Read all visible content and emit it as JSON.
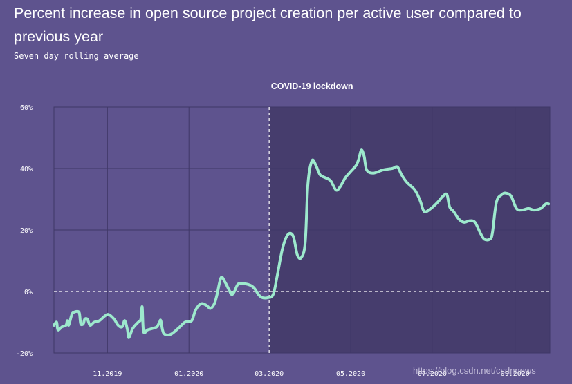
{
  "chart_data": {
    "type": "line",
    "title": "Percent increase in open source project creation per active user compared to previous year",
    "subtitle": "Seven day rolling average",
    "annotation": "COVID-19 lockdown",
    "ylim": [
      -20,
      60
    ],
    "y_ticks": [
      "60%",
      "40%",
      "20%",
      "0%",
      "-20%"
    ],
    "y_tick_values": [
      60,
      40,
      20,
      0,
      -20
    ],
    "x_range": [
      "2019-09-22",
      "2020-09-27"
    ],
    "x_ticks": [
      {
        "label": "11.2019",
        "date": "2019-11-01"
      },
      {
        "label": "01.2020",
        "date": "2020-01-01"
      },
      {
        "label": "03.2020",
        "date": "2020-03-01"
      },
      {
        "label": "05.2020",
        "date": "2020-05-01"
      },
      {
        "label": "07.2020",
        "date": "2020-07-01"
      },
      {
        "label": "09.2020",
        "date": "2020-09-01"
      }
    ],
    "lockdown_start": "2020-03-01",
    "series": [
      {
        "name": "Percent increase",
        "color": "#9de9cd",
        "points": [
          [
            "2019-09-22",
            -11
          ],
          [
            "2019-09-24",
            -10
          ],
          [
            "2019-09-25",
            -12.5
          ],
          [
            "2019-09-28",
            -11.5
          ],
          [
            "2019-10-01",
            -11
          ],
          [
            "2019-10-02",
            -9.5
          ],
          [
            "2019-10-03",
            -11
          ],
          [
            "2019-10-05",
            -8
          ],
          [
            "2019-10-06",
            -7
          ],
          [
            "2019-10-09",
            -6.5
          ],
          [
            "2019-10-11",
            -7
          ],
          [
            "2019-10-12",
            -10.5
          ],
          [
            "2019-10-14",
            -10.5
          ],
          [
            "2019-10-15",
            -9
          ],
          [
            "2019-10-17",
            -9
          ],
          [
            "2019-10-19",
            -11
          ],
          [
            "2019-10-22",
            -10
          ],
          [
            "2019-10-26",
            -9.5
          ],
          [
            "2019-10-30",
            -8
          ],
          [
            "2019-11-02",
            -7.5
          ],
          [
            "2019-11-06",
            -9
          ],
          [
            "2019-11-09",
            -11
          ],
          [
            "2019-11-12",
            -11.5
          ],
          [
            "2019-11-14",
            -9.5
          ],
          [
            "2019-11-16",
            -12.5
          ],
          [
            "2019-11-17",
            -15
          ],
          [
            "2019-11-20",
            -12
          ],
          [
            "2019-11-24",
            -10
          ],
          [
            "2019-11-26",
            -9
          ],
          [
            "2019-11-27",
            -5
          ],
          [
            "2019-11-28",
            -13
          ],
          [
            "2019-12-01",
            -12.5
          ],
          [
            "2019-12-05",
            -12
          ],
          [
            "2019-12-08",
            -11.5
          ],
          [
            "2019-12-10",
            -10
          ],
          [
            "2019-12-11",
            -9.5
          ],
          [
            "2019-12-13",
            -13.5
          ],
          [
            "2019-12-18",
            -14
          ],
          [
            "2019-12-24",
            -12
          ],
          [
            "2019-12-29",
            -10
          ],
          [
            "2020-01-03",
            -9.5
          ],
          [
            "2020-01-06",
            -6
          ],
          [
            "2020-01-10",
            -4
          ],
          [
            "2020-01-14",
            -4.5
          ],
          [
            "2020-01-17",
            -5.5
          ],
          [
            "2020-01-20",
            -4
          ],
          [
            "2020-01-22",
            -1
          ],
          [
            "2020-01-25",
            4.5
          ],
          [
            "2020-01-28",
            3
          ],
          [
            "2020-01-31",
            0.5
          ],
          [
            "2020-02-02",
            -1
          ],
          [
            "2020-02-04",
            0
          ],
          [
            "2020-02-07",
            2.5
          ],
          [
            "2020-02-12",
            2.5
          ],
          [
            "2020-02-16",
            2
          ],
          [
            "2020-02-19",
            1
          ],
          [
            "2020-02-22",
            -1
          ],
          [
            "2020-02-25",
            -2
          ],
          [
            "2020-02-29",
            -2
          ],
          [
            "2020-03-04",
            -1
          ],
          [
            "2020-03-07",
            5
          ],
          [
            "2020-03-11",
            14
          ],
          [
            "2020-03-15",
            18.5
          ],
          [
            "2020-03-19",
            18
          ],
          [
            "2020-03-22",
            12
          ],
          [
            "2020-03-25",
            11
          ],
          [
            "2020-03-28",
            16
          ],
          [
            "2020-03-30",
            35
          ],
          [
            "2020-04-02",
            42.5
          ],
          [
            "2020-04-05",
            41
          ],
          [
            "2020-04-08",
            38
          ],
          [
            "2020-04-12",
            37
          ],
          [
            "2020-04-16",
            36
          ],
          [
            "2020-04-20",
            33
          ],
          [
            "2020-04-23",
            34
          ],
          [
            "2020-04-27",
            37
          ],
          [
            "2020-05-01",
            39
          ],
          [
            "2020-05-05",
            41
          ],
          [
            "2020-05-07",
            43
          ],
          [
            "2020-05-09",
            46
          ],
          [
            "2020-05-11",
            44
          ],
          [
            "2020-05-13",
            39.5
          ],
          [
            "2020-05-18",
            38.5
          ],
          [
            "2020-05-25",
            39.5
          ],
          [
            "2020-06-01",
            40
          ],
          [
            "2020-06-05",
            40.5
          ],
          [
            "2020-06-08",
            38
          ],
          [
            "2020-06-12",
            35.5
          ],
          [
            "2020-06-18",
            33
          ],
          [
            "2020-06-22",
            29.5
          ],
          [
            "2020-06-25",
            26
          ],
          [
            "2020-06-30",
            27
          ],
          [
            "2020-07-05",
            29
          ],
          [
            "2020-07-09",
            31
          ],
          [
            "2020-07-12",
            31.5
          ],
          [
            "2020-07-14",
            27.5
          ],
          [
            "2020-07-17",
            26
          ],
          [
            "2020-07-21",
            23.5
          ],
          [
            "2020-07-25",
            22.5
          ],
          [
            "2020-07-29",
            23
          ],
          [
            "2020-08-02",
            22.5
          ],
          [
            "2020-08-06",
            19
          ],
          [
            "2020-08-09",
            17
          ],
          [
            "2020-08-13",
            17
          ],
          [
            "2020-08-15",
            19
          ],
          [
            "2020-08-18",
            29
          ],
          [
            "2020-08-22",
            31.5
          ],
          [
            "2020-08-25",
            32
          ],
          [
            "2020-08-29",
            31
          ],
          [
            "2020-09-02",
            27
          ],
          [
            "2020-09-06",
            26.5
          ],
          [
            "2020-09-11",
            27
          ],
          [
            "2020-09-15",
            26.5
          ],
          [
            "2020-09-20",
            27
          ],
          [
            "2020-09-24",
            28.5
          ],
          [
            "2020-09-26",
            28.5
          ]
        ]
      }
    ]
  },
  "watermark": "https://blog.csdn.net/csdnnews",
  "colors": {
    "background": "#5e538e",
    "shaded_region": "#463d6d",
    "line": "#9de9cd",
    "grid": "#3f3766",
    "text": "#ffffff"
  }
}
